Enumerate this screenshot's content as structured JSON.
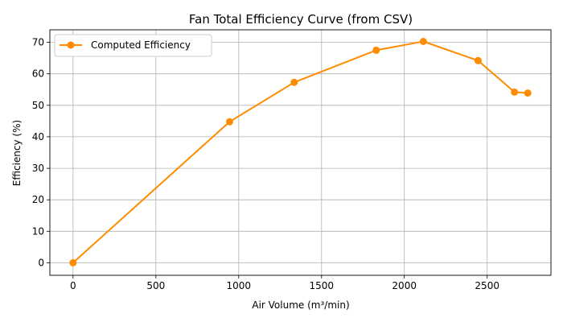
{
  "chart_data": {
    "type": "line",
    "title": "Fan Total Efficiency Curve (from CSV)",
    "xlabel": "Air Volume (m³/min)",
    "ylabel": "Efficiency (%)",
    "xlim": [
      -140,
      2885
    ],
    "ylim": [
      -4,
      74
    ],
    "xticks": [
      0,
      500,
      1000,
      1500,
      2000,
      2500
    ],
    "yticks": [
      0,
      10,
      20,
      30,
      40,
      50,
      60,
      70
    ],
    "grid": true,
    "legend_position": "top-left",
    "series": [
      {
        "name": "Computed Efficiency",
        "color": "#ff8c00",
        "marker": "circle",
        "x": [
          0,
          945,
          1335,
          1830,
          2115,
          2445,
          2665,
          2745
        ],
        "y": [
          0,
          44.8,
          57.3,
          67.5,
          70.3,
          64.2,
          54.2,
          53.9
        ]
      }
    ]
  }
}
